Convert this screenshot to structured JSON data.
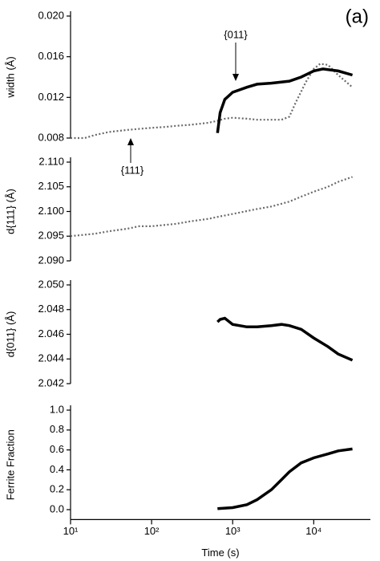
{
  "chart_data": [
    {
      "type": "line",
      "title": "(a)",
      "y_label": "width (Å)",
      "xlim": [
        10,
        50000
      ],
      "log_x": true,
      "ylim": [
        0.008,
        0.02
      ],
      "yticks": [
        {
          "value": 0.008,
          "label": "0.008"
        },
        {
          "value": 0.012,
          "label": "0.012"
        },
        {
          "value": 0.016,
          "label": "0.016"
        },
        {
          "value": 0.02,
          "label": "0.020"
        }
      ],
      "series": [
        {
          "name": "{111}",
          "color": "#6a6a6a",
          "dashed": true,
          "x": [
            10,
            15,
            20,
            30,
            50,
            70,
            100,
            150,
            200,
            300,
            500,
            650,
            800,
            1000,
            1500,
            2000,
            3000,
            4000,
            5000,
            6000,
            8000,
            10000,
            12000,
            15000,
            20000,
            30000
          ],
          "values": [
            0.008,
            0.008,
            0.0083,
            0.0086,
            0.0088,
            0.0089,
            0.009,
            0.0091,
            0.0092,
            0.0093,
            0.0095,
            0.0097,
            0.0099,
            0.01,
            0.0099,
            0.0098,
            0.0098,
            0.0098,
            0.0101,
            0.0115,
            0.0135,
            0.0148,
            0.0153,
            0.0152,
            0.0142,
            0.013
          ]
        },
        {
          "name": "{011}",
          "color": "#000000",
          "dashed": false,
          "x": [
            650,
            700,
            800,
            1000,
            1500,
            2000,
            3000,
            5000,
            7000,
            10000,
            13000,
            20000,
            30000
          ],
          "values": [
            0.0085,
            0.0105,
            0.0118,
            0.0125,
            0.013,
            0.0133,
            0.0134,
            0.0136,
            0.014,
            0.0146,
            0.0148,
            0.0146,
            0.0142
          ]
        }
      ]
    },
    {
      "type": "line",
      "y_label": "d{111} (Å)",
      "xlim": [
        10,
        50000
      ],
      "log_x": true,
      "ylim": [
        2.09,
        2.11
      ],
      "yticks": [
        {
          "value": 2.09,
          "label": "2.090"
        },
        2.095,
        {
          "value": 2.1,
          "label": "2.100"
        },
        2.105,
        {
          "value": 2.11,
          "label": "2.110"
        }
      ],
      "series": [
        {
          "color": "#6a6a6a",
          "dashed": true,
          "x": [
            10,
            20,
            30,
            50,
            70,
            100,
            200,
            300,
            500,
            700,
            1000,
            2000,
            3000,
            5000,
            7000,
            10000,
            15000,
            20000,
            30000
          ],
          "values": [
            2.095,
            2.0955,
            2.096,
            2.0965,
            2.097,
            2.097,
            2.0975,
            2.098,
            2.0985,
            2.099,
            2.0995,
            2.1005,
            2.101,
            2.102,
            2.103,
            2.104,
            2.105,
            2.106,
            2.107
          ]
        }
      ]
    },
    {
      "type": "line",
      "y_label": "d{011} (Å)",
      "xlim": [
        10,
        50000
      ],
      "log_x": true,
      "ylim": [
        2.042,
        2.05
      ],
      "yticks": [
        2.042,
        2.044,
        2.046,
        2.048,
        {
          "value": 2.05,
          "label": "2.050"
        }
      ],
      "series": [
        {
          "color": "#000000",
          "dashed": false,
          "x": [
            650,
            700,
            800,
            1000,
            1500,
            2000,
            3000,
            4000,
            5000,
            7000,
            10000,
            15000,
            20000,
            30000
          ],
          "values": [
            2.047,
            2.0472,
            2.0473,
            2.0468,
            2.0466,
            2.0466,
            2.0467,
            2.0468,
            2.0467,
            2.0464,
            2.0457,
            2.045,
            2.0444,
            2.0439
          ]
        }
      ]
    },
    {
      "type": "line",
      "y_label": "Ferrite Fraction",
      "x_label": "Time (s)",
      "xlim": [
        10,
        50000
      ],
      "log_x": true,
      "xticks": [
        {
          "value": 10,
          "label": "10¹"
        },
        {
          "value": 100,
          "label": "10²"
        },
        {
          "value": 1000,
          "label": "10³"
        },
        {
          "value": 10000,
          "label": "10⁴"
        }
      ],
      "ylim": [
        -0.1,
        1.0
      ],
      "yticks": [
        {
          "value": 0,
          "label": "0.0"
        },
        0.2,
        0.4,
        0.6,
        0.8,
        {
          "value": 1,
          "label": "1.0"
        }
      ],
      "series": [
        {
          "color": "#000000",
          "dashed": false,
          "x": [
            650,
            1000,
            1500,
            2000,
            3000,
            4000,
            5000,
            7000,
            10000,
            15000,
            20000,
            30000
          ],
          "values": [
            0.01,
            0.02,
            0.05,
            0.1,
            0.2,
            0.3,
            0.38,
            0.47,
            0.52,
            0.56,
            0.59,
            0.61
          ]
        }
      ]
    }
  ]
}
